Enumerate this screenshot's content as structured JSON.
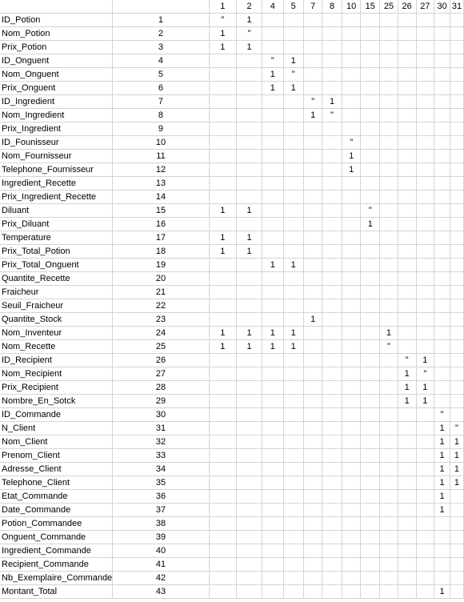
{
  "columns": [
    "1",
    "2",
    "4",
    "5",
    "7",
    "8",
    "10",
    "15",
    "25",
    "26",
    "27",
    "30",
    "31"
  ],
  "rows": [
    {
      "name": "ID_Potion",
      "index": "1",
      "cells": {
        "1": "\"",
        "2": "1"
      }
    },
    {
      "name": "Nom_Potion",
      "index": "2",
      "cells": {
        "1": "1",
        "2": "\""
      }
    },
    {
      "name": "Prix_Potion",
      "index": "3",
      "cells": {
        "1": "1",
        "2": "1"
      }
    },
    {
      "name": "ID_Onguent",
      "index": "4",
      "cells": {
        "4": "\"",
        "5": "1"
      }
    },
    {
      "name": "Nom_Onguent",
      "index": "5",
      "cells": {
        "4": "1",
        "5": "\""
      }
    },
    {
      "name": "Prix_Onguent",
      "index": "6",
      "cells": {
        "4": "1",
        "5": "1"
      }
    },
    {
      "name": "ID_Ingredient",
      "index": "7",
      "cells": {
        "7": "\"",
        "8": "1"
      }
    },
    {
      "name": "Nom_Ingredient",
      "index": "8",
      "cells": {
        "7": "1",
        "8": "\""
      }
    },
    {
      "name": "Prix_Ingredient",
      "index": "9",
      "cells": {}
    },
    {
      "name": "ID_Founisseur",
      "index": "10",
      "cells": {
        "10": "\""
      }
    },
    {
      "name": "Nom_Fournisseur",
      "index": "11",
      "cells": {
        "10": "1"
      }
    },
    {
      "name": "Telephone_Fournisseur",
      "index": "12",
      "cells": {
        "10": "1"
      }
    },
    {
      "name": "Ingredient_Recette",
      "index": "13",
      "cells": {}
    },
    {
      "name": "Prix_Ingredient_Recette",
      "index": "14",
      "cells": {}
    },
    {
      "name": "Diluant",
      "index": "15",
      "cells": {
        "1": "1",
        "2": "1",
        "15": "\""
      }
    },
    {
      "name": "Prix_Diluant",
      "index": "16",
      "cells": {
        "15": "1"
      }
    },
    {
      "name": "Temperature",
      "index": "17",
      "cells": {
        "1": "1",
        "2": "1"
      }
    },
    {
      "name": "Prix_Total_Potion",
      "index": "18",
      "cells": {
        "1": "1",
        "2": "1"
      }
    },
    {
      "name": "Prix_Total_Onguent",
      "index": "19",
      "cells": {
        "4": "1",
        "5": "1"
      }
    },
    {
      "name": "Quantite_Recette",
      "index": "20",
      "cells": {}
    },
    {
      "name": "Fraicheur",
      "index": "21",
      "cells": {}
    },
    {
      "name": "Seuil_Fraicheur",
      "index": "22",
      "cells": {}
    },
    {
      "name": "Quantite_Stock",
      "index": "23",
      "cells": {
        "7": "1"
      }
    },
    {
      "name": "Nom_Inventeur",
      "index": "24",
      "cells": {
        "1": "1",
        "2": "1",
        "4": "1",
        "5": "1",
        "25": "1"
      }
    },
    {
      "name": "Nom_Recette",
      "index": "25",
      "cells": {
        "1": "1",
        "2": "1",
        "4": "1",
        "5": "1",
        "25": "\""
      }
    },
    {
      "name": "ID_Recipient",
      "index": "26",
      "cells": {
        "26": "\"",
        "27": "1"
      }
    },
    {
      "name": "Nom_Recipient",
      "index": "27",
      "cells": {
        "26": "1",
        "27": "\""
      }
    },
    {
      "name": "Prix_Recipient",
      "index": "28",
      "cells": {
        "26": "1",
        "27": "1"
      }
    },
    {
      "name": "Nombre_En_Sotck",
      "index": "29",
      "cells": {
        "26": "1",
        "27": "1"
      }
    },
    {
      "name": "ID_Commande",
      "index": "30",
      "cells": {
        "30": "\""
      }
    },
    {
      "name": "N_Client",
      "index": "31",
      "cells": {
        "30": "1",
        "31": "\""
      }
    },
    {
      "name": "Nom_Client",
      "index": "32",
      "cells": {
        "30": "1",
        "31": "1"
      }
    },
    {
      "name": "Prenom_Client",
      "index": "33",
      "cells": {
        "30": "1",
        "31": "1"
      }
    },
    {
      "name": "Adresse_Client",
      "index": "34",
      "cells": {
        "30": "1",
        "31": "1"
      }
    },
    {
      "name": "Telephone_Client",
      "index": "35",
      "cells": {
        "30": "1",
        "31": "1"
      }
    },
    {
      "name": "Etat_Commande",
      "index": "36",
      "cells": {
        "30": "1"
      }
    },
    {
      "name": "Date_Commande",
      "index": "37",
      "cells": {
        "30": "1"
      }
    },
    {
      "name": "Potion_Commandee",
      "index": "38",
      "cells": {}
    },
    {
      "name": "Onguent_Commande",
      "index": "39",
      "cells": {}
    },
    {
      "name": "Ingredient_Commande",
      "index": "40",
      "cells": {}
    },
    {
      "name": "Recipient_Commande",
      "index": "41",
      "cells": {}
    },
    {
      "name": "Nb_Exemplaire_Commande",
      "index": "42",
      "cells": {}
    },
    {
      "name": "Montant_Total",
      "index": "43",
      "cells": {
        "30": "1"
      }
    }
  ]
}
